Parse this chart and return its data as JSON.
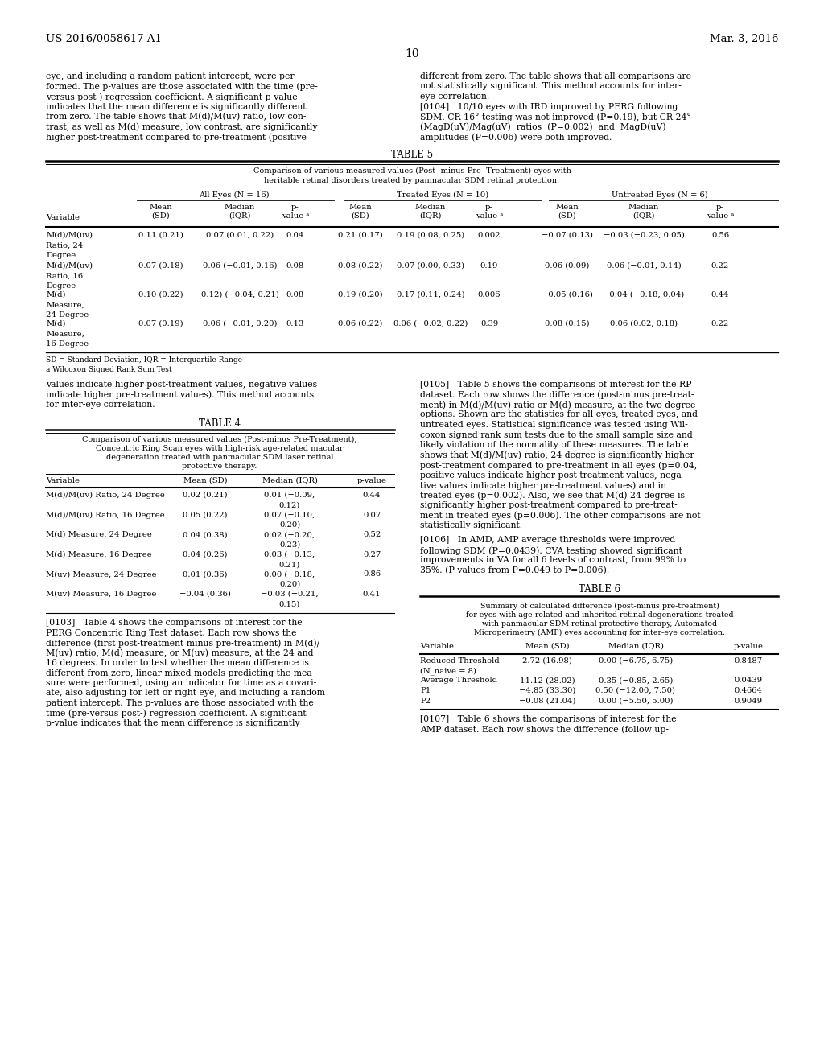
{
  "header_left": "US 2016/0058617 A1",
  "header_right": "Mar. 3, 2016",
  "page_num": "10",
  "bg_color": "#ffffff",
  "left_col_text_top": "eye, and including a random patient intercept, were per-\nformed. The p-values are those associated with the time (pre-\nversus post-) regression coefficient. A significant p-value\nindicates that the mean difference is significantly different\nfrom zero. The table shows that M(d)/M(uv) ratio, low con-\ntrast, as well as M(d) measure, low contrast, are significantly\nhigher post-treatment compared to pre-treatment (positive",
  "right_col_text_top": "different from zero. The table shows that all comparisons are\nnot statistically significant. This method accounts for inter-\neye correlation.\n[0104]   10/10 eyes with IRD improved by PERG following\nSDM. CR 16° testing was not improved (P=0.19), but CR 24°\n(MagD(uV)/Mag(uV)  ratios  (P=0.002)  and  MagD(uV)\namplitudes (P=0.006) were both improved.",
  "table5_title": "TABLE 5",
  "table5_subtitle1": "Comparison of various measured values (Post- minus Pre- Treatment) eyes with",
  "table5_subtitle2": "heritable retinal disorders treated by panmacular SDM retinal protection.",
  "table5_col_groups": [
    "All Eyes (N = 16)",
    "Treated Eyes (N = 10)",
    "Untreated Eyes (N = 6)"
  ],
  "table5_rows": [
    [
      "M(d)/M(uv)",
      "0.11 (0.21)",
      "0.07 (0.01, 0.22)",
      "0.04",
      "0.21 (0.17)",
      "0.19 (0.08, 0.25)",
      "0.002",
      "−0.07 (0.13)",
      "−0.03 (−0.23, 0.05)",
      "0.56",
      "Ratio, 24",
      "",
      "",
      "",
      "",
      "",
      "",
      "",
      "",
      "",
      "Degree",
      "",
      "",
      "",
      "",
      "",
      "",
      "",
      "",
      ""
    ],
    [
      "M(d)/M(uv)",
      "0.07 (0.18)",
      "0.06 (−0.01, 0.16)",
      "0.08",
      "0.08 (0.22)",
      "0.07 (0.00, 0.33)",
      "0.19",
      "0.06 (0.09)",
      "0.06 (−0.01, 0.14)",
      "0.22",
      "Ratio, 16",
      "",
      "",
      "",
      "",
      "",
      "",
      "",
      "",
      "",
      "Degree",
      "",
      "",
      "",
      "",
      "",
      "",
      "",
      "",
      ""
    ],
    [
      "M(d)",
      "0.10 (0.22)",
      "0.12) (−0.04, 0.21)",
      "0.08",
      "0.19 (0.20)",
      "0.17 (0.11, 0.24)",
      "0.006",
      "−0.05 (0.16)",
      "−0.04 (−0.18, 0.04)",
      "0.44",
      "Measure,",
      "",
      "",
      "",
      "",
      "",
      "",
      "",
      "",
      "",
      "24 Degree",
      "",
      "",
      "",
      "",
      "",
      "",
      "",
      "",
      ""
    ],
    [
      "M(d)",
      "0.07 (0.19)",
      "0.06 (−0.01, 0.20)",
      "0.13",
      "0.06 (0.22)",
      "0.06 (−0.02, 0.22)",
      "0.39",
      "0.08 (0.15)",
      "0.06 (0.02, 0.18)",
      "0.22",
      "Measure,",
      "",
      "",
      "",
      "",
      "",
      "",
      "",
      "",
      "",
      "16 Degree",
      "",
      "",
      "",
      "",
      "",
      "",
      "",
      "",
      ""
    ]
  ],
  "table5_footnote1": "SD = Standard Deviation, IQR = Interquartile Range",
  "table5_footnote2": "a Wilcoxon Signed Rank Sum Test",
  "left_col_text_mid": "values indicate higher post-treatment values, negative values\nindicate higher pre-treatment values). This method accounts\nfor inter-eye correlation.",
  "table4_title": "TABLE 4",
  "table4_sub1": "Comparison of various measured values (Post-minus Pre-Treatment),",
  "table4_sub2": "Concentric Ring Scan eyes with high-risk age-related macular",
  "table4_sub3": "degeneration treated with panmacular SDM laser retinal",
  "table4_sub4": "protective therapy.",
  "table4_rows": [
    [
      "M(d)/M(uv) Ratio, 24 Degree",
      "0.02 (0.21)",
      "0.01 (−0.09,",
      "0.44"
    ],
    [
      "",
      "",
      "0.12)",
      ""
    ],
    [
      "M(d)/M(uv) Ratio, 16 Degree",
      "0.05 (0.22)",
      "0.07 (−0.10,",
      "0.07"
    ],
    [
      "",
      "",
      "0.20)",
      ""
    ],
    [
      "M(d) Measure, 24 Degree",
      "0.04 (0.38)",
      "0.02 (−0.20,",
      "0.52"
    ],
    [
      "",
      "",
      "0.23)",
      ""
    ],
    [
      "M(d) Measure, 16 Degree",
      "0.04 (0.26)",
      "0.03 (−0.13,",
      "0.27"
    ],
    [
      "",
      "",
      "0.21)",
      ""
    ],
    [
      "M(uv) Measure, 24 Degree",
      "0.01 (0.36)",
      "0.00 (−0.18,",
      "0.86"
    ],
    [
      "",
      "",
      "0.20)",
      ""
    ],
    [
      "M(uv) Measure, 16 Degree",
      "−0.04 (0.36)",
      "−0.03 (−0.21,",
      "0.41"
    ],
    [
      "",
      "",
      "0.15)",
      ""
    ]
  ],
  "para0103_lines": [
    "[0103]   Table 4 shows the comparisons of interest for the",
    "PERG Concentric Ring Test dataset. Each row shows the",
    "difference (first post-treatment minus pre-treatment) in M(d)/",
    "M(uv) ratio, M(d) measure, or M(uv) measure, at the 24 and",
    "16 degrees. In order to test whether the mean difference is",
    "different from zero, linear mixed models predicting the mea-",
    "sure were performed, using an indicator for time as a covari-",
    "ate, also adjusting for left or right eye, and including a random",
    "patient intercept. The p-values are those associated with the",
    "time (pre-versus post-) regression coefficient. A significant",
    "p-value indicates that the mean difference is significantly"
  ],
  "para0105_lines": [
    "[0105]   Table 5 shows the comparisons of interest for the RP",
    "dataset. Each row shows the difference (post-minus pre-treat-",
    "ment) in M(d)/M(uv) ratio or M(d) measure, at the two degree",
    "options. Shown are the statistics for all eyes, treated eyes, and",
    "untreated eyes. Statistical significance was tested using Wil-",
    "coxon signed rank sum tests due to the small sample size and",
    "likely violation of the normality of these measures. The table",
    "shows that M(d)/M(uv) ratio, 24 degree is significantly higher",
    "post-treatment compared to pre-treatment in all eyes (p=0.04,",
    "positive values indicate higher post-treatment values, nega-",
    "tive values indicate higher pre-treatment values) and in",
    "treated eyes (p=0.002). Also, we see that M(d) 24 degree is",
    "significantly higher post-treatment compared to pre-treat-",
    "ment in treated eyes (p=0.006). The other comparisons are not",
    "statistically significant."
  ],
  "para0106_lines": [
    "[0106]   In AMD, AMP average thresholds were improved",
    "following SDM (P=0.0439). CVA testing showed significant",
    "improvements in VA for all 6 levels of contrast, from 99% to",
    "35%. (P values from P=0.049 to P=0.006)."
  ],
  "table6_title": "TABLE 6",
  "table6_sub1": "Summary of calculated difference (post-minus pre-treatment)",
  "table6_sub2": "for eyes with age-related and inherited retinal degenerations treated",
  "table6_sub3": "with panmacular SDM retinal protective therapy, Automated",
  "table6_sub4": "Microperimetry (AMP) eyes accounting for inter-eye correlation.",
  "table6_rows": [
    [
      "Reduced Threshold",
      "2.72 (16.98)",
      "0.00 (−6.75, 6.75)",
      "0.8487"
    ],
    [
      "(N_naive = 8)",
      "",
      "",
      ""
    ],
    [
      "Average Threshold",
      "11.12 (28.02)",
      "0.35 (−0.85, 2.65)",
      "0.0439"
    ],
    [
      "P1",
      "−4.85 (33.30)",
      "0.50 (−12.00, 7.50)",
      "0.4664"
    ],
    [
      "P2",
      "−0.08 (21.04)",
      "0.00 (−5.50, 5.00)",
      "0.9049"
    ]
  ],
  "para0107_lines": [
    "[0107]   Table 6 shows the comparisons of interest for the",
    "AMP dataset. Each row shows the difference (follow up-"
  ]
}
